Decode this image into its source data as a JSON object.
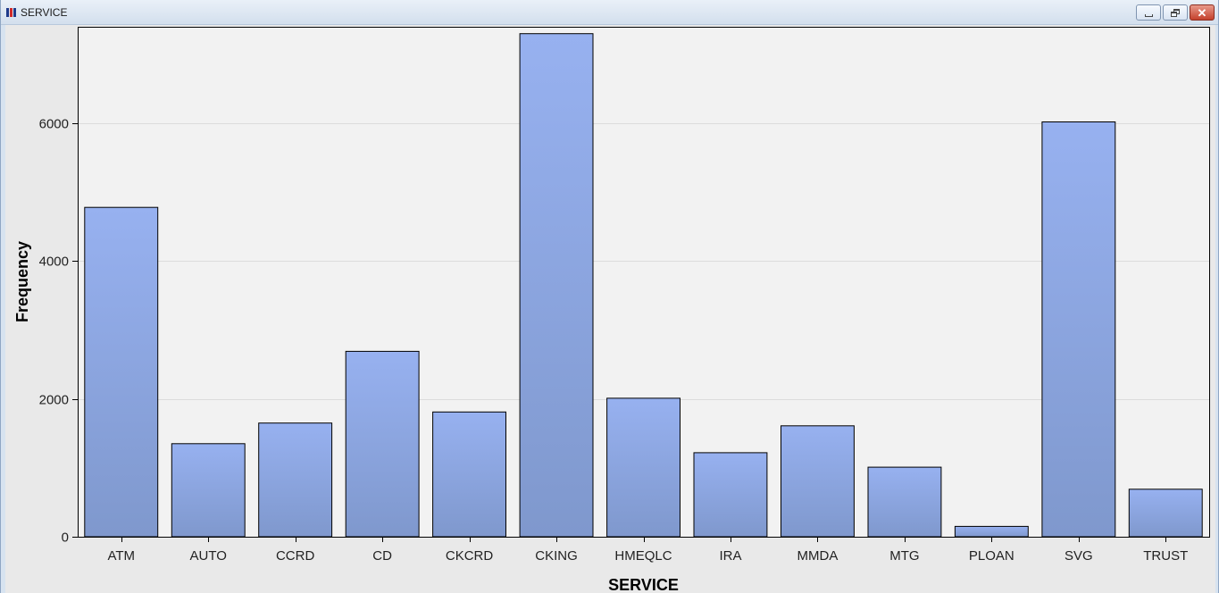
{
  "window": {
    "title": "SERVICE",
    "icon": "sas-graph-icon",
    "controls": [
      "minimize-icon",
      "restore-icon",
      "close-icon"
    ]
  },
  "colors": {
    "bar_top": "#97b1f0",
    "bar_bottom": "#7f98cd",
    "plot_bg": "#f2f2f2",
    "grid": "#dcdcdc"
  },
  "chart_data": {
    "type": "bar",
    "categories": [
      "ATM",
      "AUTO",
      "CCRD",
      "CD",
      "CKCRD",
      "CKING",
      "HMEQLC",
      "IRA",
      "MMDA",
      "MTG",
      "PLOAN",
      "SVG",
      "TRUST"
    ],
    "values": [
      4780,
      1350,
      1650,
      2690,
      1810,
      7300,
      2010,
      1220,
      1610,
      1010,
      150,
      6020,
      690
    ],
    "xlabel": "SERVICE",
    "ylabel": "Frequency",
    "yticks": [
      0,
      2000,
      4000,
      6000
    ],
    "ylim": [
      0,
      7400
    ],
    "grid": true,
    "legend": "none"
  }
}
